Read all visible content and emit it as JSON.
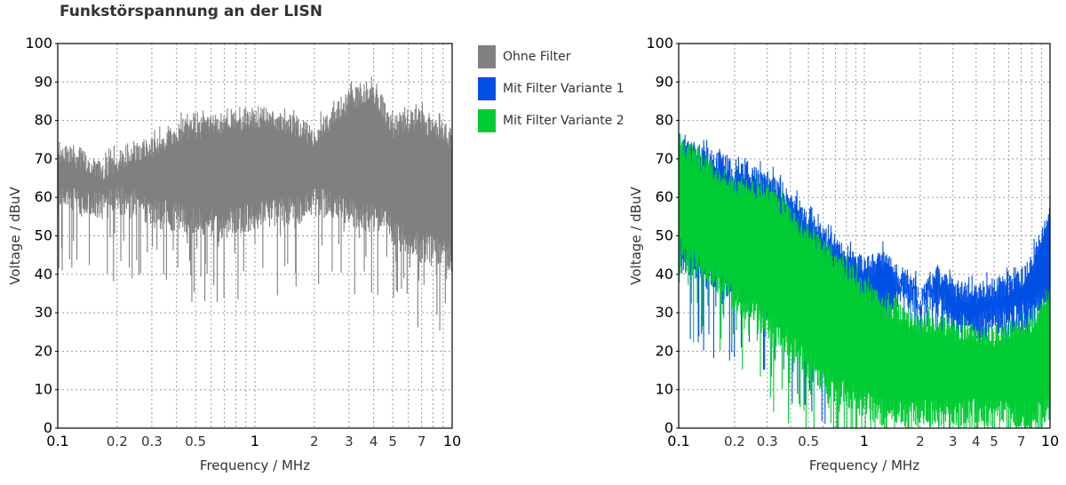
{
  "title": "Funkstörspannung an der LISN",
  "colors": {
    "ohne": "#808080",
    "v1": "#0050e6",
    "v2": "#00cc33",
    "grid": "#9a9a9a",
    "axis": "#000000"
  },
  "legend": {
    "placement": "between-charts-top",
    "items": [
      {
        "label": "Ohne Filter",
        "color": "#808080"
      },
      {
        "label": "Mit Filter Variante 1",
        "color": "#0050e6"
      },
      {
        "label": "Mit Filter Variante 2",
        "color": "#00cc33"
      }
    ]
  },
  "chart_data": [
    {
      "type": "line",
      "xlabel": "Frequency / MHz",
      "ylabel": "Voltage / dBuV",
      "xscale": "log",
      "xlim": [
        0.1,
        10
      ],
      "ylim": [
        0,
        100
      ],
      "grid": true,
      "x_ticks": [
        "0.1",
        "0.2",
        "0.3",
        "0.5",
        "1",
        "2",
        "3",
        "4",
        "5",
        "7",
        "10"
      ],
      "y_ticks": [
        "0",
        "10",
        "20",
        "30",
        "40",
        "50",
        "60",
        "70",
        "80",
        "90",
        "100"
      ],
      "series": [
        {
          "name": "Ohne Filter",
          "color": "#808080",
          "x": [
            0.1,
            0.13,
            0.17,
            0.2,
            0.25,
            0.3,
            0.4,
            0.5,
            0.7,
            1.0,
            1.3,
            1.7,
            2.0,
            2.5,
            3.0,
            3.5,
            4.0,
            4.5,
            5.0,
            6.0,
            7.0,
            8.0,
            9.0,
            10.0
          ],
          "upper": [
            75,
            73,
            70,
            72,
            75,
            76,
            80,
            81,
            82,
            84,
            83,
            81,
            79,
            84,
            88,
            90,
            90,
            86,
            81,
            83,
            83,
            81,
            80,
            78
          ],
          "lower": [
            55,
            55,
            54,
            55,
            54,
            52,
            51,
            50,
            49,
            51,
            52,
            53,
            55,
            54,
            52,
            51,
            51,
            50,
            47,
            44,
            43,
            43,
            42,
            40
          ]
        }
      ]
    },
    {
      "type": "line",
      "xlabel": "Frequency / MHz",
      "ylabel": "Voltage / dBuV",
      "xscale": "log",
      "xlim": [
        0.1,
        10
      ],
      "ylim": [
        0,
        100
      ],
      "grid": true,
      "x_ticks": [
        "0.1",
        "0.2",
        "0.3",
        "0.5",
        "1",
        "2",
        "3",
        "4",
        "5",
        "7",
        "10"
      ],
      "y_ticks": [
        "0",
        "10",
        "20",
        "30",
        "40",
        "50",
        "60",
        "70",
        "80",
        "90",
        "100"
      ],
      "series": [
        {
          "name": "Mit Filter Variante 1",
          "color": "#0050e6",
          "x": [
            0.1,
            0.13,
            0.17,
            0.2,
            0.25,
            0.3,
            0.4,
            0.5,
            0.7,
            1.0,
            1.3,
            1.6,
            1.8,
            2.0,
            2.3,
            2.7,
            3.0,
            3.5,
            4.0,
            5.0,
            6.0,
            7.0,
            8.0,
            9.0,
            10.0
          ],
          "upper": [
            76,
            74,
            72,
            70,
            69,
            68,
            62,
            57,
            50,
            45,
            47,
            41,
            42,
            36,
            42,
            42,
            39,
            38,
            38,
            39,
            40,
            42,
            46,
            52,
            60
          ],
          "lower": [
            40,
            38,
            35,
            33,
            31,
            28,
            24,
            19,
            15,
            14,
            28,
            30,
            30,
            29,
            30,
            28,
            24,
            22,
            23,
            24,
            24,
            25,
            26,
            28,
            30
          ]
        },
        {
          "name": "Mit Filter Variante 2",
          "color": "#00cc33",
          "x": [
            0.1,
            0.13,
            0.17,
            0.2,
            0.25,
            0.3,
            0.4,
            0.5,
            0.7,
            1.0,
            1.3,
            1.6,
            1.8,
            2.0,
            2.3,
            2.7,
            3.0,
            3.5,
            4.0,
            5.0,
            6.0,
            7.0,
            8.0,
            9.0,
            10.0
          ],
          "upper": [
            76,
            72,
            68,
            66,
            65,
            64,
            58,
            53,
            46,
            40,
            34,
            32,
            30,
            30,
            30,
            30,
            28,
            27,
            27,
            27,
            28,
            29,
            30,
            33,
            36
          ],
          "lower": [
            42,
            38,
            34,
            30,
            27,
            23,
            18,
            12,
            6,
            2,
            0,
            0,
            0,
            0,
            0,
            0,
            0,
            0,
            0,
            0,
            0,
            0,
            0,
            0,
            0
          ]
        }
      ]
    }
  ]
}
